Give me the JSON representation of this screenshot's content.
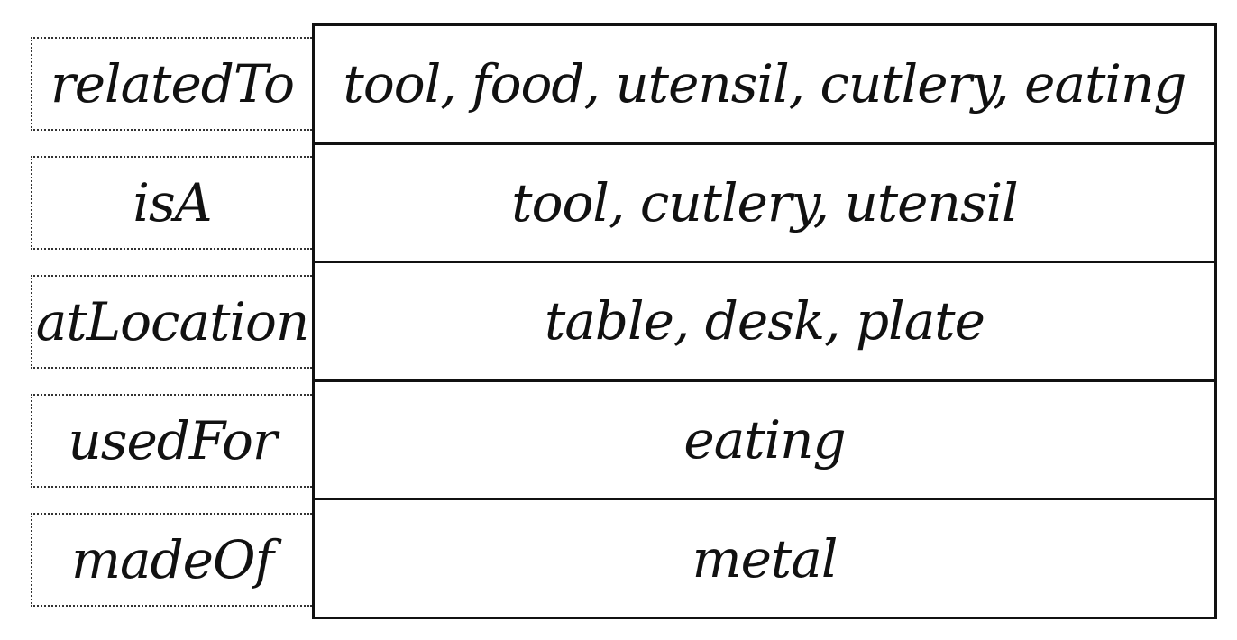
{
  "relations": [
    {
      "key": "relatedTo",
      "value": "tool, food, utensil, cutlery, eating"
    },
    {
      "key": "isA",
      "value": "tool, cutlery, utensil"
    },
    {
      "key": "atLocation",
      "value": "table, desk, plate"
    },
    {
      "key": "usedFor",
      "value": "eating"
    },
    {
      "key": "madeOf",
      "value": "metal"
    }
  ]
}
